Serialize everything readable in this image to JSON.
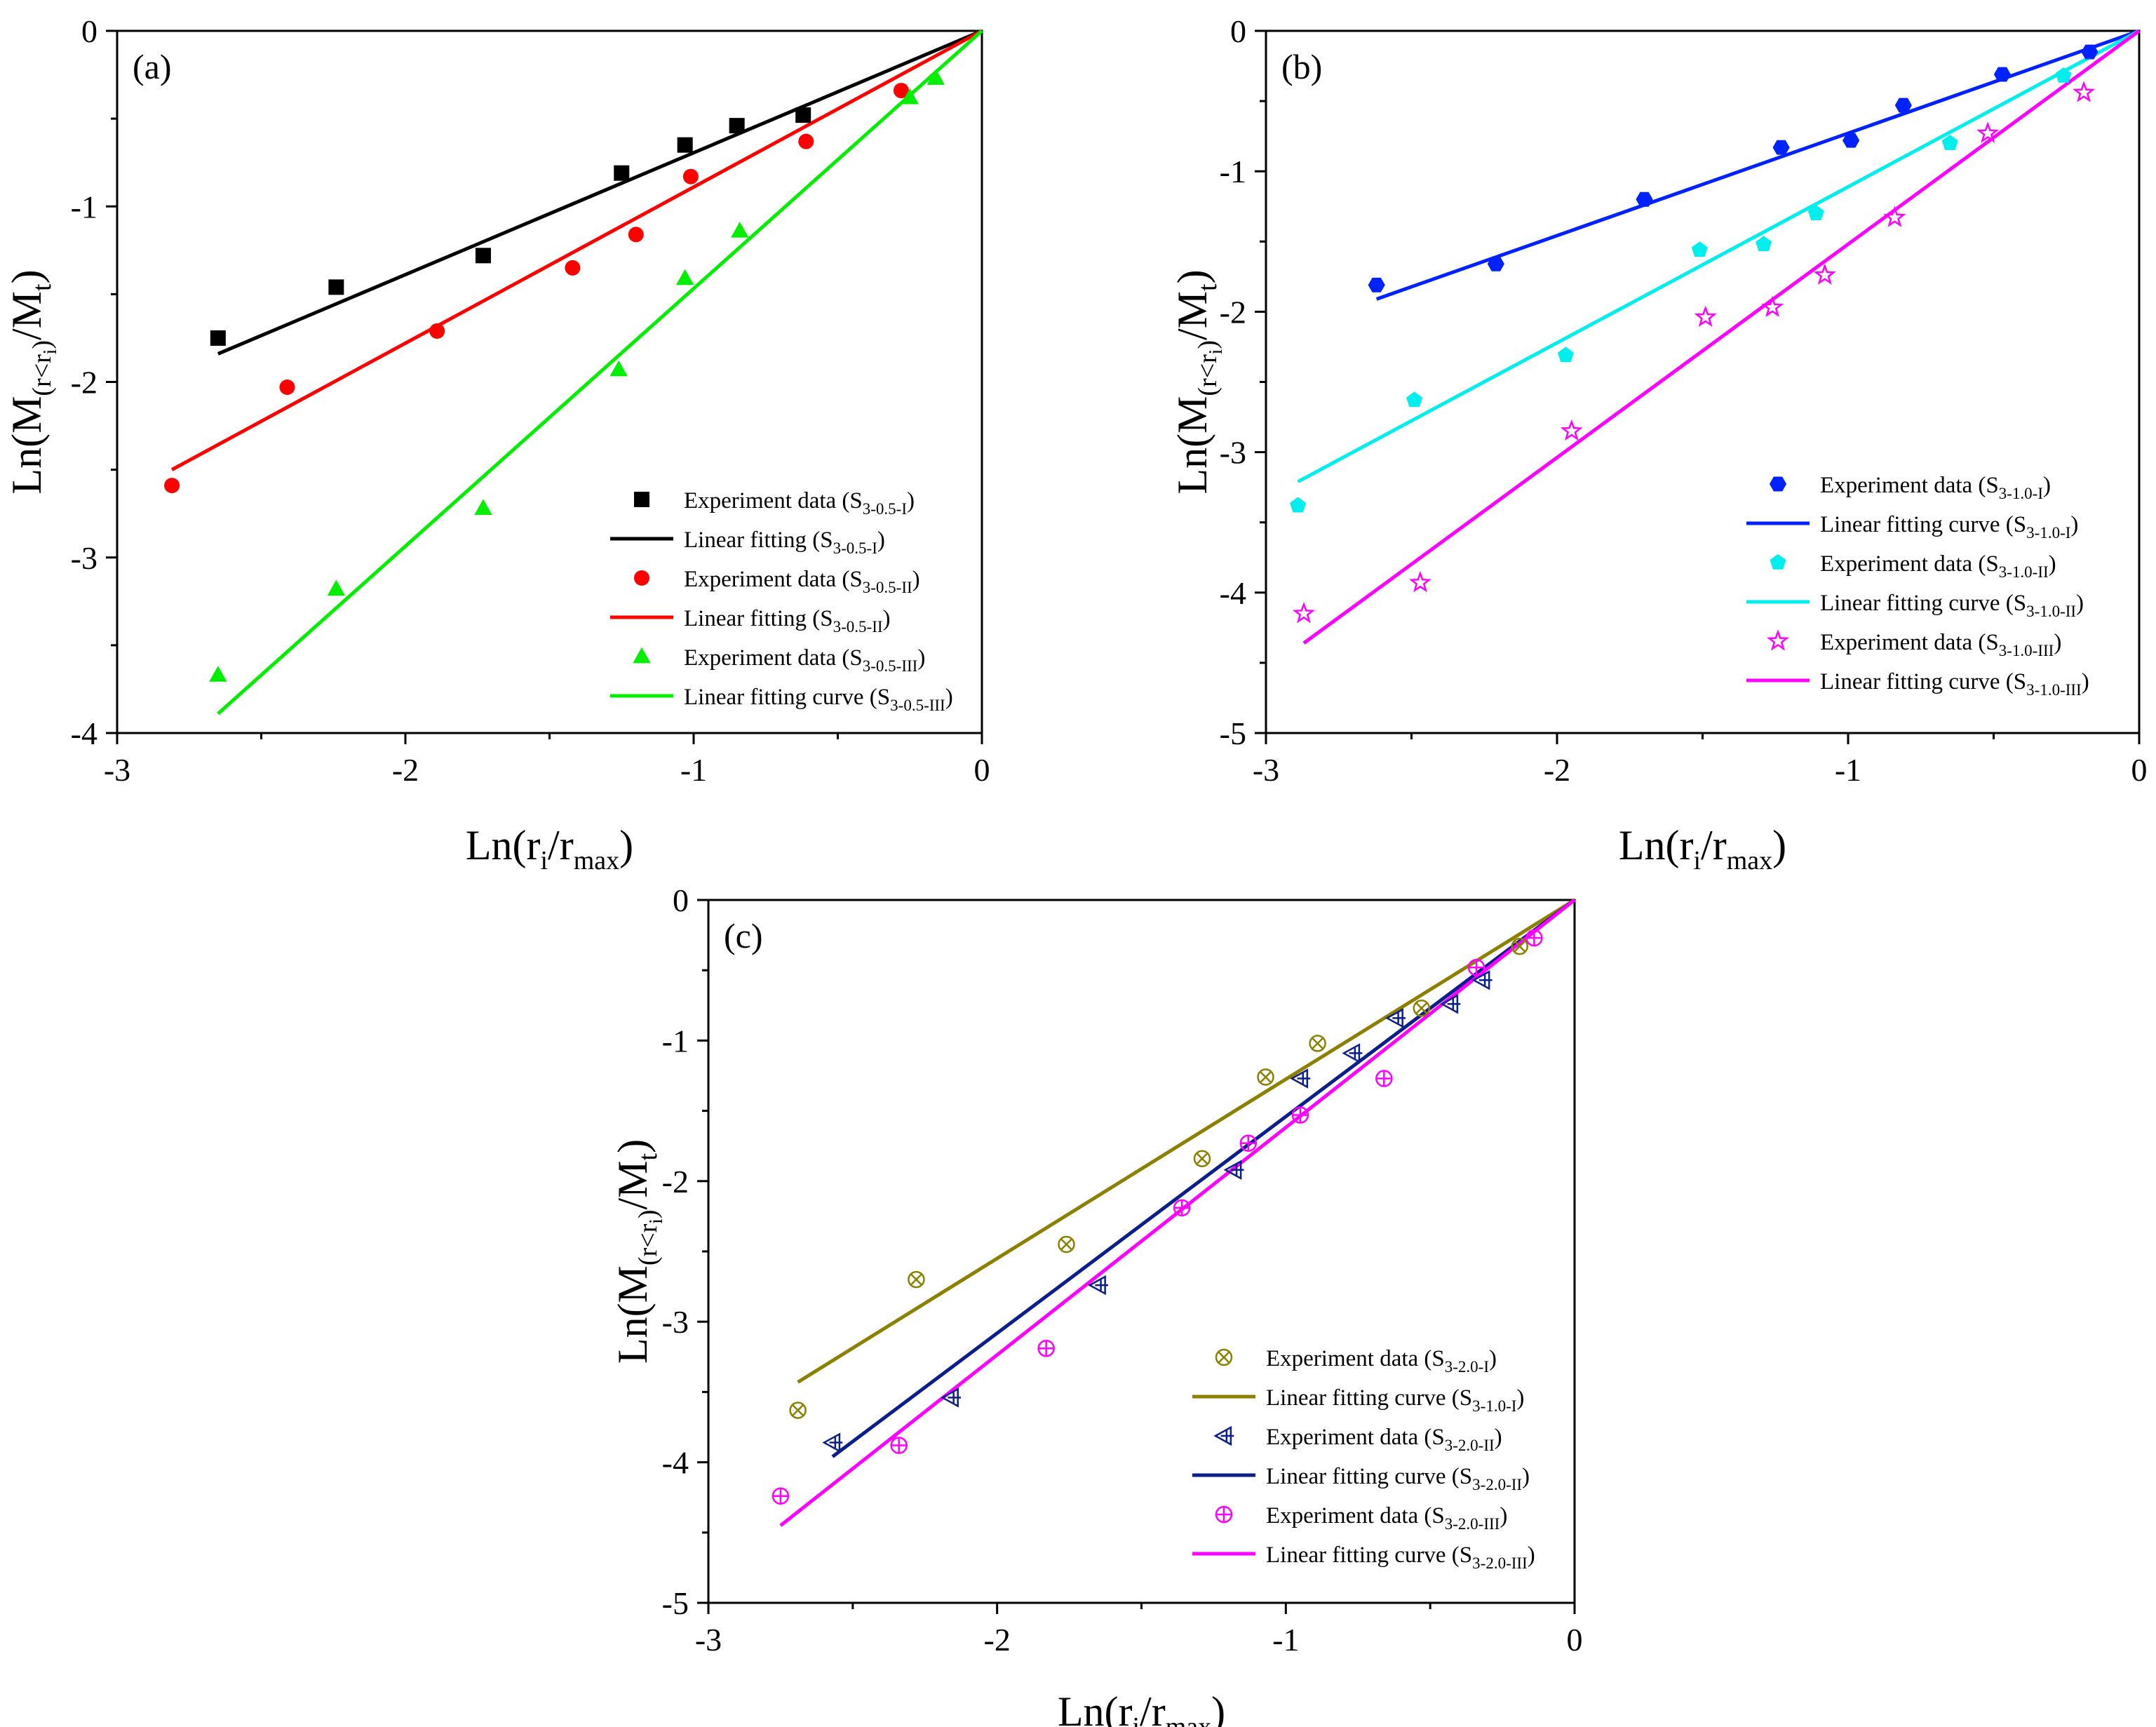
{
  "chart_data": [
    {
      "type": "scatter",
      "panel_label": "(a)",
      "title": "",
      "xlabel": {
        "base": "Ln(r",
        "sub_i": "i",
        "mid": "/r",
        "sub_max": "max",
        "end": ")"
      },
      "ylabel": {
        "base": "Ln(M",
        "sub_main": "(r<r",
        "sub_i": "i",
        "sub_close": ")",
        "mid": "/M",
        "sub_t": "t",
        "end": ")"
      },
      "xlim": [
        -3,
        0
      ],
      "ylim": [
        -4,
        0
      ],
      "xticks": [
        "-3",
        "-2",
        "-1",
        "0"
      ],
      "yticks": [
        "-4",
        "-3",
        "-2",
        "-1",
        "0"
      ],
      "legend_position": "bottom-right",
      "series": [
        {
          "name": "Experiment data (S3-0.5-I)",
          "legend_text": "Experiment data (S",
          "legend_sub": "3-0.5-I",
          "kind": "points",
          "marker": "square",
          "color": "#000000",
          "x": [
            -2.65,
            -2.24,
            -1.73,
            -1.25,
            -1.03,
            -0.85,
            -0.62
          ],
          "y": [
            -1.75,
            -1.46,
            -1.28,
            -0.81,
            -0.65,
            -0.54,
            -0.48
          ]
        },
        {
          "name": "Linear fitting (S3-0.5-I)",
          "legend_text": "Linear fitting (S",
          "legend_sub": "3-0.5-I",
          "kind": "line",
          "color": "#000000",
          "x": [
            -2.65,
            0
          ],
          "y": [
            -1.84,
            0
          ]
        },
        {
          "name": "Experiment data (S3-0.5-II)",
          "legend_text": "Experiment data (S",
          "legend_sub": "3-0.5-II",
          "kind": "points",
          "marker": "circle",
          "color": "#ff0000",
          "x": [
            -2.81,
            -2.41,
            -1.89,
            -1.42,
            -1.2,
            -1.01,
            -0.61,
            -0.28
          ],
          "y": [
            -2.59,
            -2.03,
            -1.71,
            -1.35,
            -1.16,
            -0.83,
            -0.63,
            -0.34
          ]
        },
        {
          "name": "Linear fitting (S3-0.5-II)",
          "legend_text": "Linear fitting (S",
          "legend_sub": "3-0.5-II",
          "kind": "line",
          "color": "#ff0000",
          "x": [
            -2.81,
            0
          ],
          "y": [
            -2.5,
            0
          ]
        },
        {
          "name": "Experiment data (S3-0.5-III)",
          "legend_text": "Experiment data (S",
          "legend_sub": "3-0.5-III",
          "kind": "points",
          "marker": "triangle",
          "color": "#00ee00",
          "x": [
            -2.65,
            -2.24,
            -1.73,
            -1.26,
            -1.03,
            -0.84,
            -0.25,
            -0.16
          ],
          "y": [
            -3.67,
            -3.18,
            -2.72,
            -1.93,
            -1.41,
            -1.14,
            -0.38,
            -0.27
          ]
        },
        {
          "name": "Linear fitting curve (S3-0.5-III)",
          "legend_text": "Linear fitting curve (S",
          "legend_sub": "3-0.5-III",
          "kind": "line",
          "color": "#00ee00",
          "x": [
            -2.65,
            0
          ],
          "y": [
            -3.89,
            0
          ]
        }
      ]
    },
    {
      "type": "scatter",
      "panel_label": "(b)",
      "title": "",
      "xlabel": {
        "base": "Ln(r",
        "sub_i": "i",
        "mid": "/r",
        "sub_max": "max",
        "end": ")"
      },
      "ylabel": {
        "base": "Ln(M",
        "sub_main": "(r<r",
        "sub_i": "i",
        "sub_close": ")",
        "mid": "/M",
        "sub_t": "t",
        "end": ")"
      },
      "xlim": [
        -3,
        0
      ],
      "ylim": [
        -5,
        0
      ],
      "xticks": [
        "-3",
        "-2",
        "-1",
        "0"
      ],
      "yticks": [
        "-5",
        "-4",
        "-3",
        "-2",
        "-1",
        "0"
      ],
      "legend_position": "bottom-right",
      "series": [
        {
          "name": "Experiment data (S3-1.0-I)",
          "legend_text": "Experiment data (S",
          "legend_sub": "3-1.0-I",
          "kind": "points",
          "marker": "hexagon",
          "color": "#0022ff",
          "x": [
            -2.62,
            -2.21,
            -1.7,
            -1.23,
            -0.99,
            -0.81,
            -0.47,
            -0.17
          ],
          "y": [
            -1.81,
            -1.66,
            -1.2,
            -0.83,
            -0.78,
            -0.53,
            -0.31,
            -0.15
          ]
        },
        {
          "name": "Linear fitting curve (S3-1.0-I)",
          "legend_text": "Linear fitting curve (S",
          "legend_sub": "3-1.0-I",
          "kind": "line",
          "color": "#0022ff",
          "x": [
            -2.62,
            0
          ],
          "y": [
            -1.91,
            0
          ]
        },
        {
          "name": "Experiment data (S3-1.0-II)",
          "legend_text": "Experiment data (S",
          "legend_sub": "3-1.0-II",
          "kind": "points",
          "marker": "pentagon",
          "color": "#00eeee",
          "x": [
            -2.89,
            -2.49,
            -1.97,
            -1.51,
            -1.29,
            -1.11,
            -0.65,
            -0.26
          ],
          "y": [
            -3.38,
            -2.63,
            -2.31,
            -1.56,
            -1.52,
            -1.3,
            -0.8,
            -0.32
          ]
        },
        {
          "name": "Linear fitting curve (S3-1.0-II)",
          "legend_text": "Linear fitting curve (S",
          "legend_sub": "3-1.0-II",
          "kind": "line",
          "color": "#00eeee",
          "x": [
            -2.89,
            0
          ],
          "y": [
            -3.21,
            0
          ]
        },
        {
          "name": "Experiment data (S3-1.0-III)",
          "legend_text": "Experiment data (S",
          "legend_sub": "3-1.0-III",
          "kind": "points",
          "marker": "star",
          "color": "#ff00ff",
          "x": [
            -2.87,
            -2.47,
            -1.95,
            -1.49,
            -1.26,
            -1.08,
            -0.84,
            -0.52,
            -0.19
          ],
          "y": [
            -4.15,
            -3.93,
            -2.85,
            -2.04,
            -1.97,
            -1.74,
            -1.33,
            -0.73,
            -0.44
          ]
        },
        {
          "name": "Linear fitting curve (S3-1.0-III)",
          "legend_text": "Linear fitting curve (S",
          "legend_sub": "3-1.0-III",
          "kind": "line",
          "color": "#ff00ff",
          "x": [
            -2.87,
            0
          ],
          "y": [
            -4.36,
            0
          ]
        }
      ]
    },
    {
      "type": "scatter",
      "panel_label": "(c)",
      "title": "",
      "xlabel": {
        "base": "Ln(r",
        "sub_i": "i",
        "mid": "/r",
        "sub_max": "max",
        "end": ")"
      },
      "ylabel": {
        "base": "Ln(M",
        "sub_main": "(r<r",
        "sub_i": "i",
        "sub_close": ")",
        "mid": "/M",
        "sub_t": "t",
        "end": ")"
      },
      "xlim": [
        -3,
        0
      ],
      "ylim": [
        -5,
        0
      ],
      "xticks": [
        "-3",
        "-2",
        "-1",
        "0"
      ],
      "yticks": [
        "-5",
        "-4",
        "-3",
        "-2",
        "-1",
        "0"
      ],
      "legend_position": "bottom-right",
      "series": [
        {
          "name": "Experiment data (S3-2.0-I)",
          "legend_text": "Experiment data (S",
          "legend_sub": "3-2.0-I",
          "kind": "points",
          "marker": "circle-x",
          "color": "#8b8000",
          "x": [
            -2.69,
            -2.28,
            -1.76,
            -1.29,
            -1.07,
            -0.89,
            -0.53,
            -0.19
          ],
          "y": [
            -3.63,
            -2.7,
            -2.45,
            -1.84,
            -1.26,
            -1.02,
            -0.77,
            -0.33
          ]
        },
        {
          "name": "Linear fitting curve (S3-1.0-I)",
          "legend_text": "Linear fitting curve (S",
          "legend_sub": "3-1.0-I",
          "kind": "line",
          "color": "#8b8000",
          "x": [
            -2.69,
            0
          ],
          "y": [
            -3.43,
            0
          ]
        },
        {
          "name": "Experiment data (S3-2.0-II)",
          "legend_text": "Experiment data (S",
          "legend_sub": "3-2.0-II",
          "kind": "points",
          "marker": "tri-left",
          "color": "#0a1e8c",
          "x": [
            -2.57,
            -2.16,
            -1.65,
            -1.18,
            -0.95,
            -0.77,
            -0.62,
            -0.43,
            -0.32
          ],
          "y": [
            -3.86,
            -3.54,
            -2.74,
            -1.92,
            -1.27,
            -1.09,
            -0.84,
            -0.74,
            -0.57
          ]
        },
        {
          "name": "Linear fitting curve (S3-2.0-II)",
          "legend_text": "Linear fitting curve (S",
          "legend_sub": "3-2.0-II",
          "kind": "line",
          "color": "#0a1e8c",
          "x": [
            -2.57,
            0
          ],
          "y": [
            -3.96,
            0
          ]
        },
        {
          "name": "Experiment data (S3-2.0-III)",
          "legend_text": "Experiment data (S",
          "legend_sub": "3-2.0-III",
          "kind": "points",
          "marker": "circle-plus",
          "color": "#ff00ff",
          "x": [
            -2.75,
            -2.34,
            -1.83,
            -1.36,
            -1.13,
            -0.95,
            -0.66,
            -0.34,
            -0.14
          ],
          "y": [
            -4.24,
            -3.88,
            -3.19,
            -2.19,
            -1.73,
            -1.53,
            -1.27,
            -0.48,
            -0.27
          ]
        },
        {
          "name": "Linear fitting curve (S3-2.0-III)",
          "legend_text": "Linear fitting curve (S",
          "legend_sub": "3-2.0-III",
          "kind": "line",
          "color": "#ff00ff",
          "x": [
            -2.75,
            0
          ],
          "y": [
            -4.45,
            0
          ]
        }
      ]
    }
  ]
}
